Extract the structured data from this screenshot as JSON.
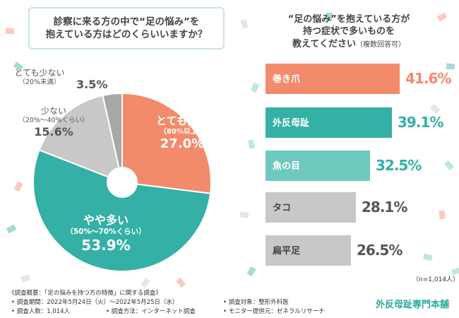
{
  "left_title": {
    "line1": "診察に来る方の中で“足の悩み”を",
    "line2": "抱えている方はどのくらいいますか？"
  },
  "right_title": {
    "line1": "“足の悩み”を抱えている方が",
    "line2": "持つ症状で多いものを",
    "line3": "教えてください",
    "note": "（複数回答可）"
  },
  "chart_data": [
    {
      "type": "pie",
      "title": "",
      "slices": [
        {
          "label": "とても多い",
          "sub": "（80%以上）",
          "value": 27.0,
          "display": "27.0%",
          "color": "#f28b6b"
        },
        {
          "label": "やや多い",
          "sub": "（50%～70%くらい）",
          "value": 53.9,
          "display": "53.9%",
          "color": "#34b0a6"
        },
        {
          "label": "少ない",
          "sub": "（20%～40%くらい）",
          "value": 15.6,
          "display": "15.6%",
          "color": "#c8c8c8"
        },
        {
          "label": "とても少ない",
          "sub": "（20%未満）",
          "value": 3.5,
          "display": "3.5%",
          "color": "#a8a8a8"
        }
      ]
    },
    {
      "type": "bar",
      "title": "",
      "categories": [
        "巻き爪",
        "外反母趾",
        "魚の目",
        "タコ",
        "扁平足"
      ],
      "values": [
        41.6,
        39.1,
        32.5,
        28.1,
        26.5
      ],
      "labels": [
        "41.6%",
        "39.1%",
        "32.5%",
        "28.1%",
        "26.5%"
      ],
      "colors": [
        "#f28b6b",
        "#34b0a6",
        "#6fc9be",
        "#c8c8c8",
        "#c8c8c8"
      ],
      "value_colors": [
        "#f28b6b",
        "#34b0a6",
        "#34b0a6",
        "#555555",
        "#555555"
      ],
      "n_note": "（n=1,014人）"
    }
  ],
  "footer": {
    "heading": "《調査概要：「足の悩みを持つ方の特徴」に関する調査》",
    "period": "• 調査期間：2022年5月24日（火）～2022年5月25日（水）",
    "count": "• 調査人数：1,014人",
    "method": "• 調査方法：インターネット調査",
    "target": "• 調査対象：整形外科医",
    "provider": "• モニター提供元：ゼネラルリサーチ",
    "brand": "外反母趾専門本舗"
  },
  "colors": {
    "coral": "#f28b6b",
    "teal": "#34b0a6",
    "light_teal": "#6fc9be",
    "gray": "#c8c8c8",
    "dark_gray": "#a8a8a8"
  }
}
